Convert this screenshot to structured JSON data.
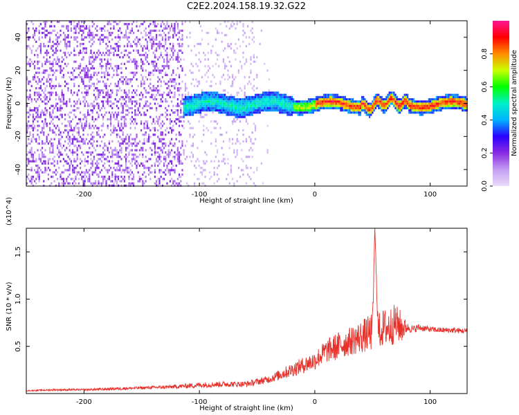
{
  "title": "C2E2.2024.158.19.32.G22",
  "chart_data": [
    {
      "type": "heatmap",
      "xlabel": "Height of straight line (km)",
      "ylabel": "Frequency (Hz)",
      "xlim": [
        -250,
        132
      ],
      "ylim": [
        -50,
        50
      ],
      "xticks": [
        -200,
        -100,
        0,
        100
      ],
      "yticks": [
        -40,
        -20,
        0,
        20,
        40
      ],
      "colorbar": {
        "label": "Normalized spectral amplitude",
        "range": [
          0.0,
          1.0
        ],
        "ticks": [
          0.0,
          0.2,
          0.4,
          0.6,
          0.8
        ],
        "colors": [
          "#e9dcfa",
          "#c39cf2",
          "#8a2be2",
          "#2b00ff",
          "#00b4ff",
          "#00f0c8",
          "#00ff00",
          "#c8ff00",
          "#ff8c00",
          "#ff0000",
          "#ff1493"
        ]
      },
      "regions": [
        {
          "x_range": [
            -250,
            -115
          ],
          "freq_range": [
            -50,
            50
          ],
          "amplitude": 0.1,
          "pattern": "broadband scattered noise"
        },
        {
          "x_range": [
            -115,
            -50
          ],
          "freq_range": [
            -50,
            50
          ],
          "amplitude": 0.02,
          "pattern": "sparse noise"
        },
        {
          "x_range": [
            -115,
            132
          ],
          "freq_range": [
            -5,
            5
          ],
          "amplitude": 0.9,
          "pattern": "narrowband signal near 0 Hz"
        }
      ]
    },
    {
      "type": "line",
      "xlabel": "Height of straight line (km)",
      "ylabel": "SNR (10 * v/v)",
      "y_multiplier": "(x10^4)",
      "xlim": [
        -250,
        132
      ],
      "ylim": [
        0,
        1.75
      ],
      "xticks": [
        -200,
        -100,
        0,
        100
      ],
      "yticks": [
        0.5,
        1.0,
        1.5
      ],
      "color": "#e8302a",
      "series": [
        {
          "x": [
            -250,
            -225,
            -200,
            -175,
            -150,
            -125,
            -100,
            -80,
            -60,
            -40,
            -20,
            0,
            10,
            20,
            30,
            40,
            50,
            52,
            55,
            60,
            65,
            70,
            75,
            80,
            85,
            90,
            100,
            110,
            120,
            132
          ],
          "y": [
            0.03,
            0.04,
            0.04,
            0.05,
            0.06,
            0.07,
            0.09,
            0.1,
            0.1,
            0.15,
            0.25,
            0.35,
            0.45,
            0.5,
            0.55,
            0.6,
            0.65,
            1.75,
            0.65,
            0.7,
            0.7,
            0.75,
            0.7,
            0.7,
            0.68,
            0.7,
            0.68,
            0.67,
            0.67,
            0.66
          ],
          "spread": [
            0.01,
            0.02,
            0.02,
            0.03,
            0.03,
            0.04,
            0.06,
            0.06,
            0.06,
            0.08,
            0.15,
            0.2,
            0.25,
            0.3,
            0.3,
            0.35,
            0.4,
            0.0,
            0.4,
            0.4,
            0.45,
            0.4,
            0.35,
            0.1,
            0.08,
            0.08,
            0.06,
            0.06,
            0.06,
            0.06
          ]
        }
      ]
    }
  ]
}
